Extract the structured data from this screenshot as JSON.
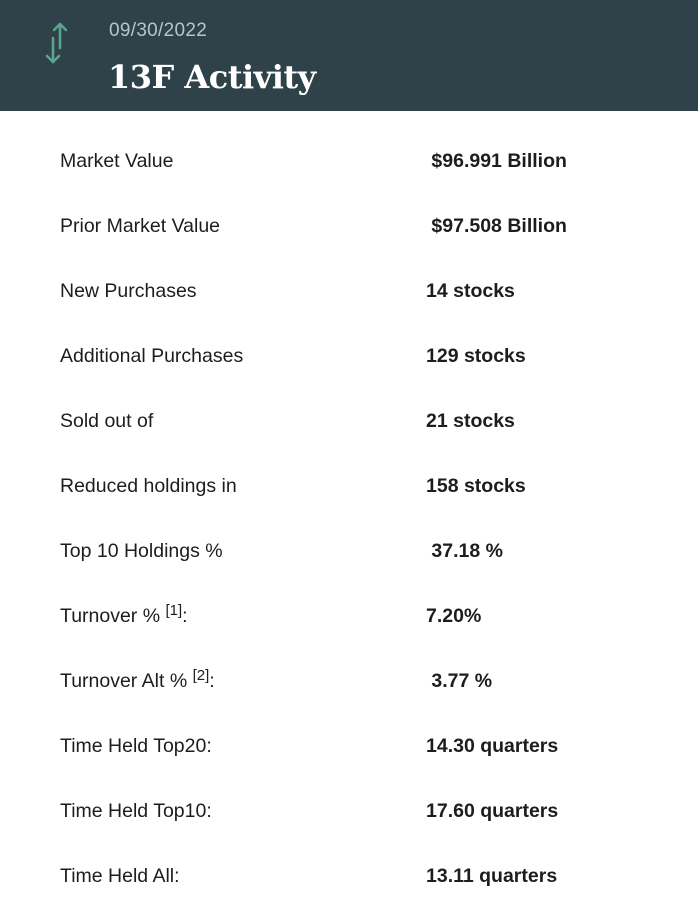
{
  "header": {
    "icon": "vertical-arrows-icon",
    "date": "09/30/2022",
    "title": "13F Activity",
    "icon_color": "#5aa58f",
    "background_color": "#2f4149"
  },
  "rows": [
    {
      "label": "Market Value",
      "ref": "",
      "suffix": "",
      "value": " $96.991 Billion"
    },
    {
      "label": "Prior Market Value",
      "ref": "",
      "suffix": "",
      "value": " $97.508 Billion"
    },
    {
      "label": "New Purchases",
      "ref": "",
      "suffix": "",
      "value": "14 stocks"
    },
    {
      "label": "Additional Purchases",
      "ref": "",
      "suffix": "",
      "value": "129 stocks"
    },
    {
      "label": "Sold out of",
      "ref": "",
      "suffix": "",
      "value": "21 stocks"
    },
    {
      "label": "Reduced holdings in",
      "ref": "",
      "suffix": "",
      "value": "158 stocks"
    },
    {
      "label": "Top 10 Holdings %",
      "ref": "",
      "suffix": "",
      "value": " 37.18 %"
    },
    {
      "label": "Turnover % ",
      "ref": "[1]",
      "suffix": ":",
      "value": "7.20%"
    },
    {
      "label": "Turnover Alt % ",
      "ref": "[2]",
      "suffix": ":",
      "value": " 3.77 %"
    },
    {
      "label": "Time Held Top20:",
      "ref": "",
      "suffix": "",
      "value": "14.30 quarters"
    },
    {
      "label": "Time Held Top10:",
      "ref": "",
      "suffix": "",
      "value": "17.60 quarters"
    },
    {
      "label": "Time Held All:",
      "ref": "",
      "suffix": "",
      "value": "13.11 quarters"
    }
  ]
}
